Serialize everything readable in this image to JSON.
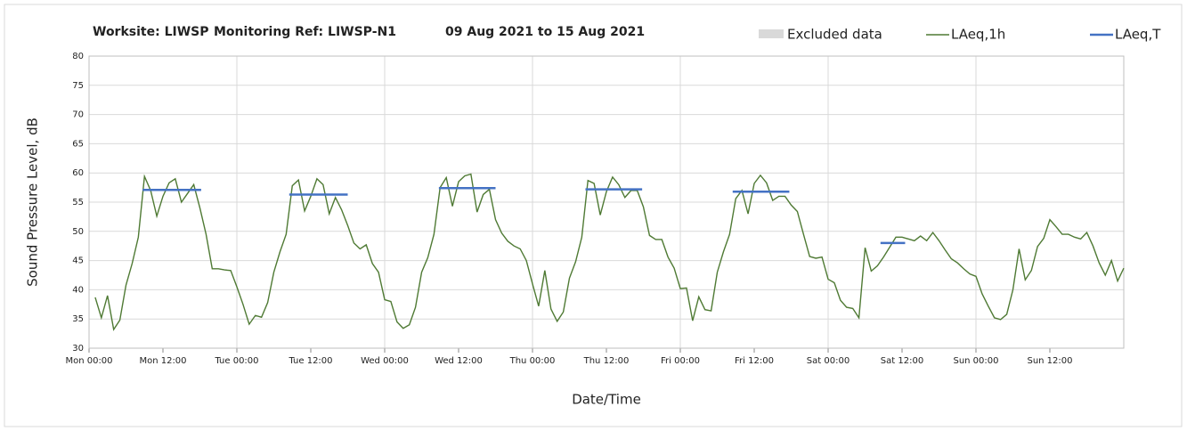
{
  "chart_data": {
    "type": "line",
    "title": [
      "Worksite: LIWSP",
      "Monitoring Ref: LIWSP-N1",
      "09 Aug 2021 to 15 Aug 2021"
    ],
    "xlabel": "Date/Time",
    "ylabel": "Sound Pressure Level, dB",
    "xlim": [
      0,
      168
    ],
    "ylim": [
      30,
      80
    ],
    "xticks": [
      {
        "value": 0,
        "label": "Mon 00:00"
      },
      {
        "value": 12,
        "label": "Mon 12:00"
      },
      {
        "value": 24,
        "label": "Tue 00:00"
      },
      {
        "value": 36,
        "label": "Tue 12:00"
      },
      {
        "value": 48,
        "label": "Wed 00:00"
      },
      {
        "value": 60,
        "label": "Wed 12:00"
      },
      {
        "value": 72,
        "label": "Thu 00:00"
      },
      {
        "value": 84,
        "label": "Thu 12:00"
      },
      {
        "value": 96,
        "label": "Fri 00:00"
      },
      {
        "value": 108,
        "label": "Fri 12:00"
      },
      {
        "value": 120,
        "label": "Sat 00:00"
      },
      {
        "value": 132,
        "label": "Sat 12:00"
      },
      {
        "value": 144,
        "label": "Sun 00:00"
      },
      {
        "value": 156,
        "label": "Sun 12:00"
      }
    ],
    "yticks": [
      30,
      35,
      40,
      45,
      50,
      55,
      60,
      65,
      70,
      75,
      80
    ],
    "grid": true,
    "excluded": {
      "name": "Excluded data",
      "color": "#d9d9d9"
    },
    "series": [
      {
        "name": "LAeq,1h",
        "color": "#4f7a34",
        "x": [
          1,
          2,
          3,
          4,
          5,
          6,
          7,
          8,
          9,
          10,
          11,
          12,
          13,
          14,
          15,
          16,
          17,
          18,
          19,
          20,
          21,
          22,
          23,
          24,
          25,
          26,
          27,
          28,
          29,
          30,
          31,
          32,
          33,
          34,
          35,
          36,
          37,
          38,
          39,
          40,
          41,
          42,
          43,
          44,
          45,
          46,
          47,
          48,
          49,
          50,
          51,
          52,
          53,
          54,
          55,
          56,
          57,
          58,
          59,
          60,
          61,
          62,
          63,
          64,
          65,
          66,
          67,
          68,
          69,
          70,
          71,
          72,
          73,
          74,
          75,
          76,
          77,
          78,
          79,
          80,
          81,
          82,
          83,
          84,
          85,
          86,
          87,
          88,
          89,
          90,
          91,
          92,
          93,
          94,
          95,
          96,
          97,
          98,
          99,
          100,
          101,
          102,
          103,
          104,
          105,
          106,
          107,
          108,
          109,
          110,
          111,
          112,
          113,
          114,
          115,
          116,
          117,
          118,
          119,
          120,
          121,
          122,
          123,
          124,
          125,
          126,
          127,
          128,
          129,
          130,
          131,
          132,
          133,
          134,
          135,
          136,
          137,
          138,
          139,
          140,
          141,
          142,
          143,
          144,
          145,
          146,
          147,
          148,
          149,
          150,
          151,
          152,
          153,
          154,
          155,
          156,
          157,
          158,
          159,
          160,
          161,
          162,
          163,
          164,
          165,
          166,
          167,
          168
        ],
        "values": [
          38.7,
          35.2,
          39,
          33.2,
          34.8,
          40.8,
          44.5,
          49,
          59.4,
          57,
          52.6,
          56,
          58.3,
          59,
          55,
          56.5,
          58,
          54,
          49.5,
          43.6,
          43.6,
          43.4,
          43.3,
          40.5,
          37.5,
          34.1,
          35.6,
          35.3,
          37.8,
          43,
          46.5,
          49.5,
          57.8,
          58.8,
          53.5,
          56,
          59,
          58,
          53,
          55.8,
          53.7,
          51,
          48,
          47,
          47.7,
          44.5,
          43,
          38.3,
          38,
          34.5,
          33.4,
          34,
          37,
          43,
          45.5,
          49.5,
          57.5,
          59.2,
          54.3,
          58.5,
          59.5,
          59.8,
          53.3,
          56.3,
          57.2,
          52,
          49.7,
          48.3,
          47.5,
          47,
          45,
          41,
          37.2,
          43.3,
          36.7,
          34.6,
          36.2,
          42,
          44.8,
          49,
          58.7,
          58.2,
          52.8,
          56.8,
          59.3,
          58,
          55.8,
          57,
          57,
          54.2,
          49.3,
          48.6,
          48.6,
          45.6,
          43.7,
          40.2,
          40.3,
          34.7,
          38.8,
          36.6,
          36.4,
          43,
          46.5,
          49.5,
          55.6,
          57,
          53,
          58.2,
          59.6,
          58.3,
          55.3,
          56,
          56,
          54.5,
          53.4,
          49.5,
          45.7,
          45.4,
          45.6,
          41.8,
          41.2,
          38.2,
          37,
          36.8,
          35.2,
          47.2,
          43.2,
          44.1,
          45.6,
          47.3,
          49,
          49,
          48.7,
          48.4,
          49.2,
          48.4,
          49.8,
          48.4,
          46.8,
          45.3,
          44.6,
          43.6,
          42.7,
          42.3,
          39.3,
          37.2,
          35.2,
          34.9,
          35.8,
          40,
          47,
          41.7,
          43.3,
          47.4,
          48.8,
          52,
          50.8,
          49.5,
          49.5,
          49,
          48.7,
          49.8,
          47.5,
          44.6,
          42.5,
          45,
          41.5,
          43.7
        ]
      },
      {
        "name": "LAeq,T",
        "color": "#4472c4",
        "segments": [
          {
            "x": [
              8.7,
              18.2
            ],
            "value": 57.1
          },
          {
            "x": [
              32.5,
              42
            ],
            "value": 56.3
          },
          {
            "x": [
              56.8,
              66
            ],
            "value": 57.4
          },
          {
            "x": [
              80.6,
              89.8
            ],
            "value": 57.2
          },
          {
            "x": [
              104.5,
              113.7
            ],
            "value": 56.8
          },
          {
            "x": [
              128.5,
              132.5
            ],
            "value": 48
          }
        ]
      }
    ]
  }
}
